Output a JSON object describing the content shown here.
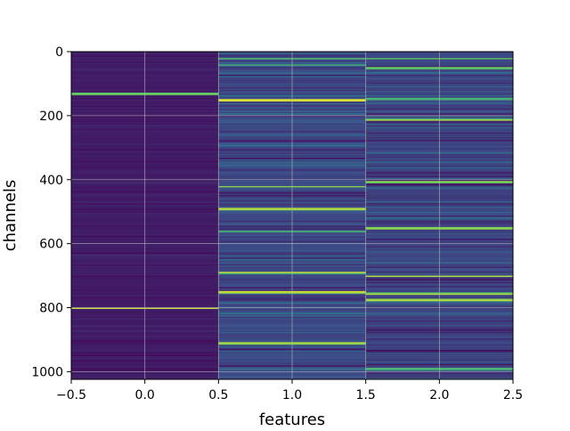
{
  "chart_data": {
    "type": "heatmap",
    "title": "",
    "xlabel": "features",
    "ylabel": "channels",
    "xlim": [
      -0.5,
      2.5
    ],
    "ylim": [
      1024,
      0
    ],
    "y_inverted": true,
    "columns": [
      0,
      1,
      2
    ],
    "rows": 1024,
    "grid": true,
    "colormap": "viridis",
    "xticks": [
      -0.5,
      0.0,
      0.5,
      1.0,
      1.5,
      2.0,
      2.5
    ],
    "xtick_labels": [
      "−0.5",
      "0.0",
      "0.5",
      "1.0",
      "1.5",
      "2.0",
      "2.5"
    ],
    "yticks": [
      0,
      200,
      400,
      600,
      800,
      1000
    ],
    "ytick_labels": [
      "0",
      "200",
      "400",
      "600",
      "800",
      "1000"
    ],
    "column_profiles": [
      {
        "feature": 0,
        "base_value": 0.08,
        "variation": 0.06,
        "bright_rows": [
          130,
          800
        ]
      },
      {
        "feature": 1,
        "base_value": 0.22,
        "variation": 0.2,
        "bright_rows": [
          20,
          40,
          150,
          420,
          490,
          560,
          690,
          750,
          910
        ]
      },
      {
        "feature": 2,
        "base_value": 0.2,
        "variation": 0.2,
        "bright_rows": [
          20,
          50,
          145,
          210,
          405,
          550,
          700,
          755,
          775,
          990
        ]
      }
    ]
  }
}
